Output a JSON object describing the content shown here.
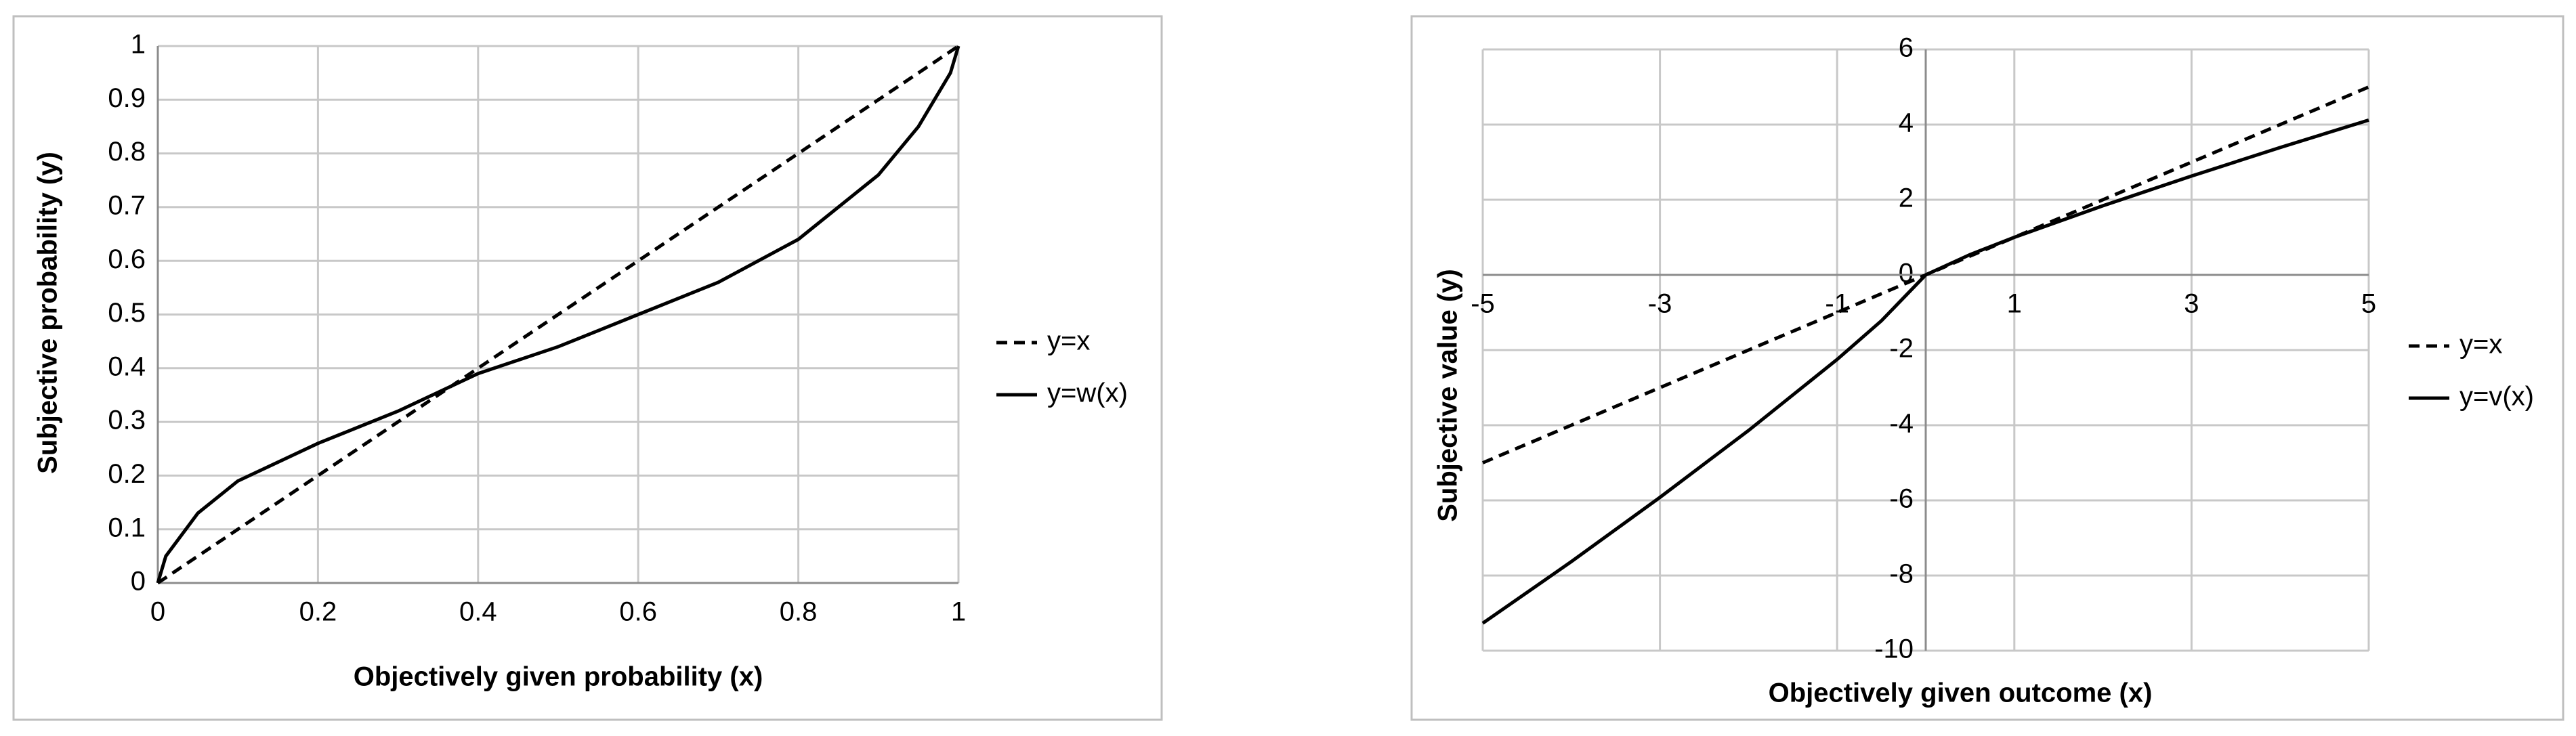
{
  "chart_data": [
    {
      "type": "line",
      "x_label": "Objectively given probability (x)",
      "y_label": "Subjective probability (y)",
      "x": [
        0,
        0.01,
        0.05,
        0.1,
        0.2,
        0.3,
        0.4,
        0.5,
        0.6,
        0.7,
        0.8,
        0.9,
        0.95,
        0.99,
        1
      ],
      "series": [
        {
          "name": "y=x",
          "color": "#000000",
          "line_style": "dashed",
          "values": [
            0,
            0.01,
            0.05,
            0.1,
            0.2,
            0.3,
            0.4,
            0.5,
            0.6,
            0.7,
            0.8,
            0.9,
            0.95,
            0.99,
            1
          ]
        },
        {
          "name": "y=w(x)",
          "color": "#000000",
          "line_style": "solid",
          "values": [
            0,
            0.05,
            0.13,
            0.19,
            0.26,
            0.32,
            0.39,
            0.44,
            0.5,
            0.56,
            0.64,
            0.76,
            0.85,
            0.95,
            1
          ]
        }
      ],
      "xlim": [
        0,
        1
      ],
      "ylim": [
        0,
        1
      ],
      "xticks": [
        0,
        0.2,
        0.4,
        0.6,
        0.8,
        1
      ],
      "yticks": [
        0,
        0.1,
        0.2,
        0.3,
        0.4,
        0.5,
        0.6,
        0.7,
        0.8,
        0.9,
        1
      ],
      "grid": true,
      "legend": "right"
    },
    {
      "type": "line",
      "x_label": "Objectively given outcome (x)",
      "y_label": "Subjective value (y)",
      "x": [
        -5,
        -4,
        -3,
        -2,
        -1,
        -0.5,
        0,
        0.5,
        1,
        2,
        3,
        4,
        5
      ],
      "series": [
        {
          "name": "y=x",
          "color": "#000000",
          "line_style": "dashed",
          "values": [
            -5,
            -4,
            -3,
            -2,
            -1,
            -0.5,
            0,
            0.5,
            1,
            2,
            3,
            4,
            5
          ]
        },
        {
          "name": "y=v(x)",
          "color": "#000000",
          "line_style": "solid",
          "values": [
            -9.27,
            -7.63,
            -5.92,
            -4.14,
            -2.25,
            -1.22,
            0,
            0.54,
            1,
            1.84,
            2.63,
            3.39,
            4.12
          ]
        }
      ],
      "xlim": [
        -5,
        5
      ],
      "ylim": [
        -10,
        6
      ],
      "xticks": [
        -5,
        -3,
        -1,
        1,
        3,
        5
      ],
      "yticks": [
        -10,
        -8,
        -6,
        -4,
        -2,
        0,
        2,
        4,
        6
      ],
      "grid": true,
      "legend": "right"
    }
  ]
}
